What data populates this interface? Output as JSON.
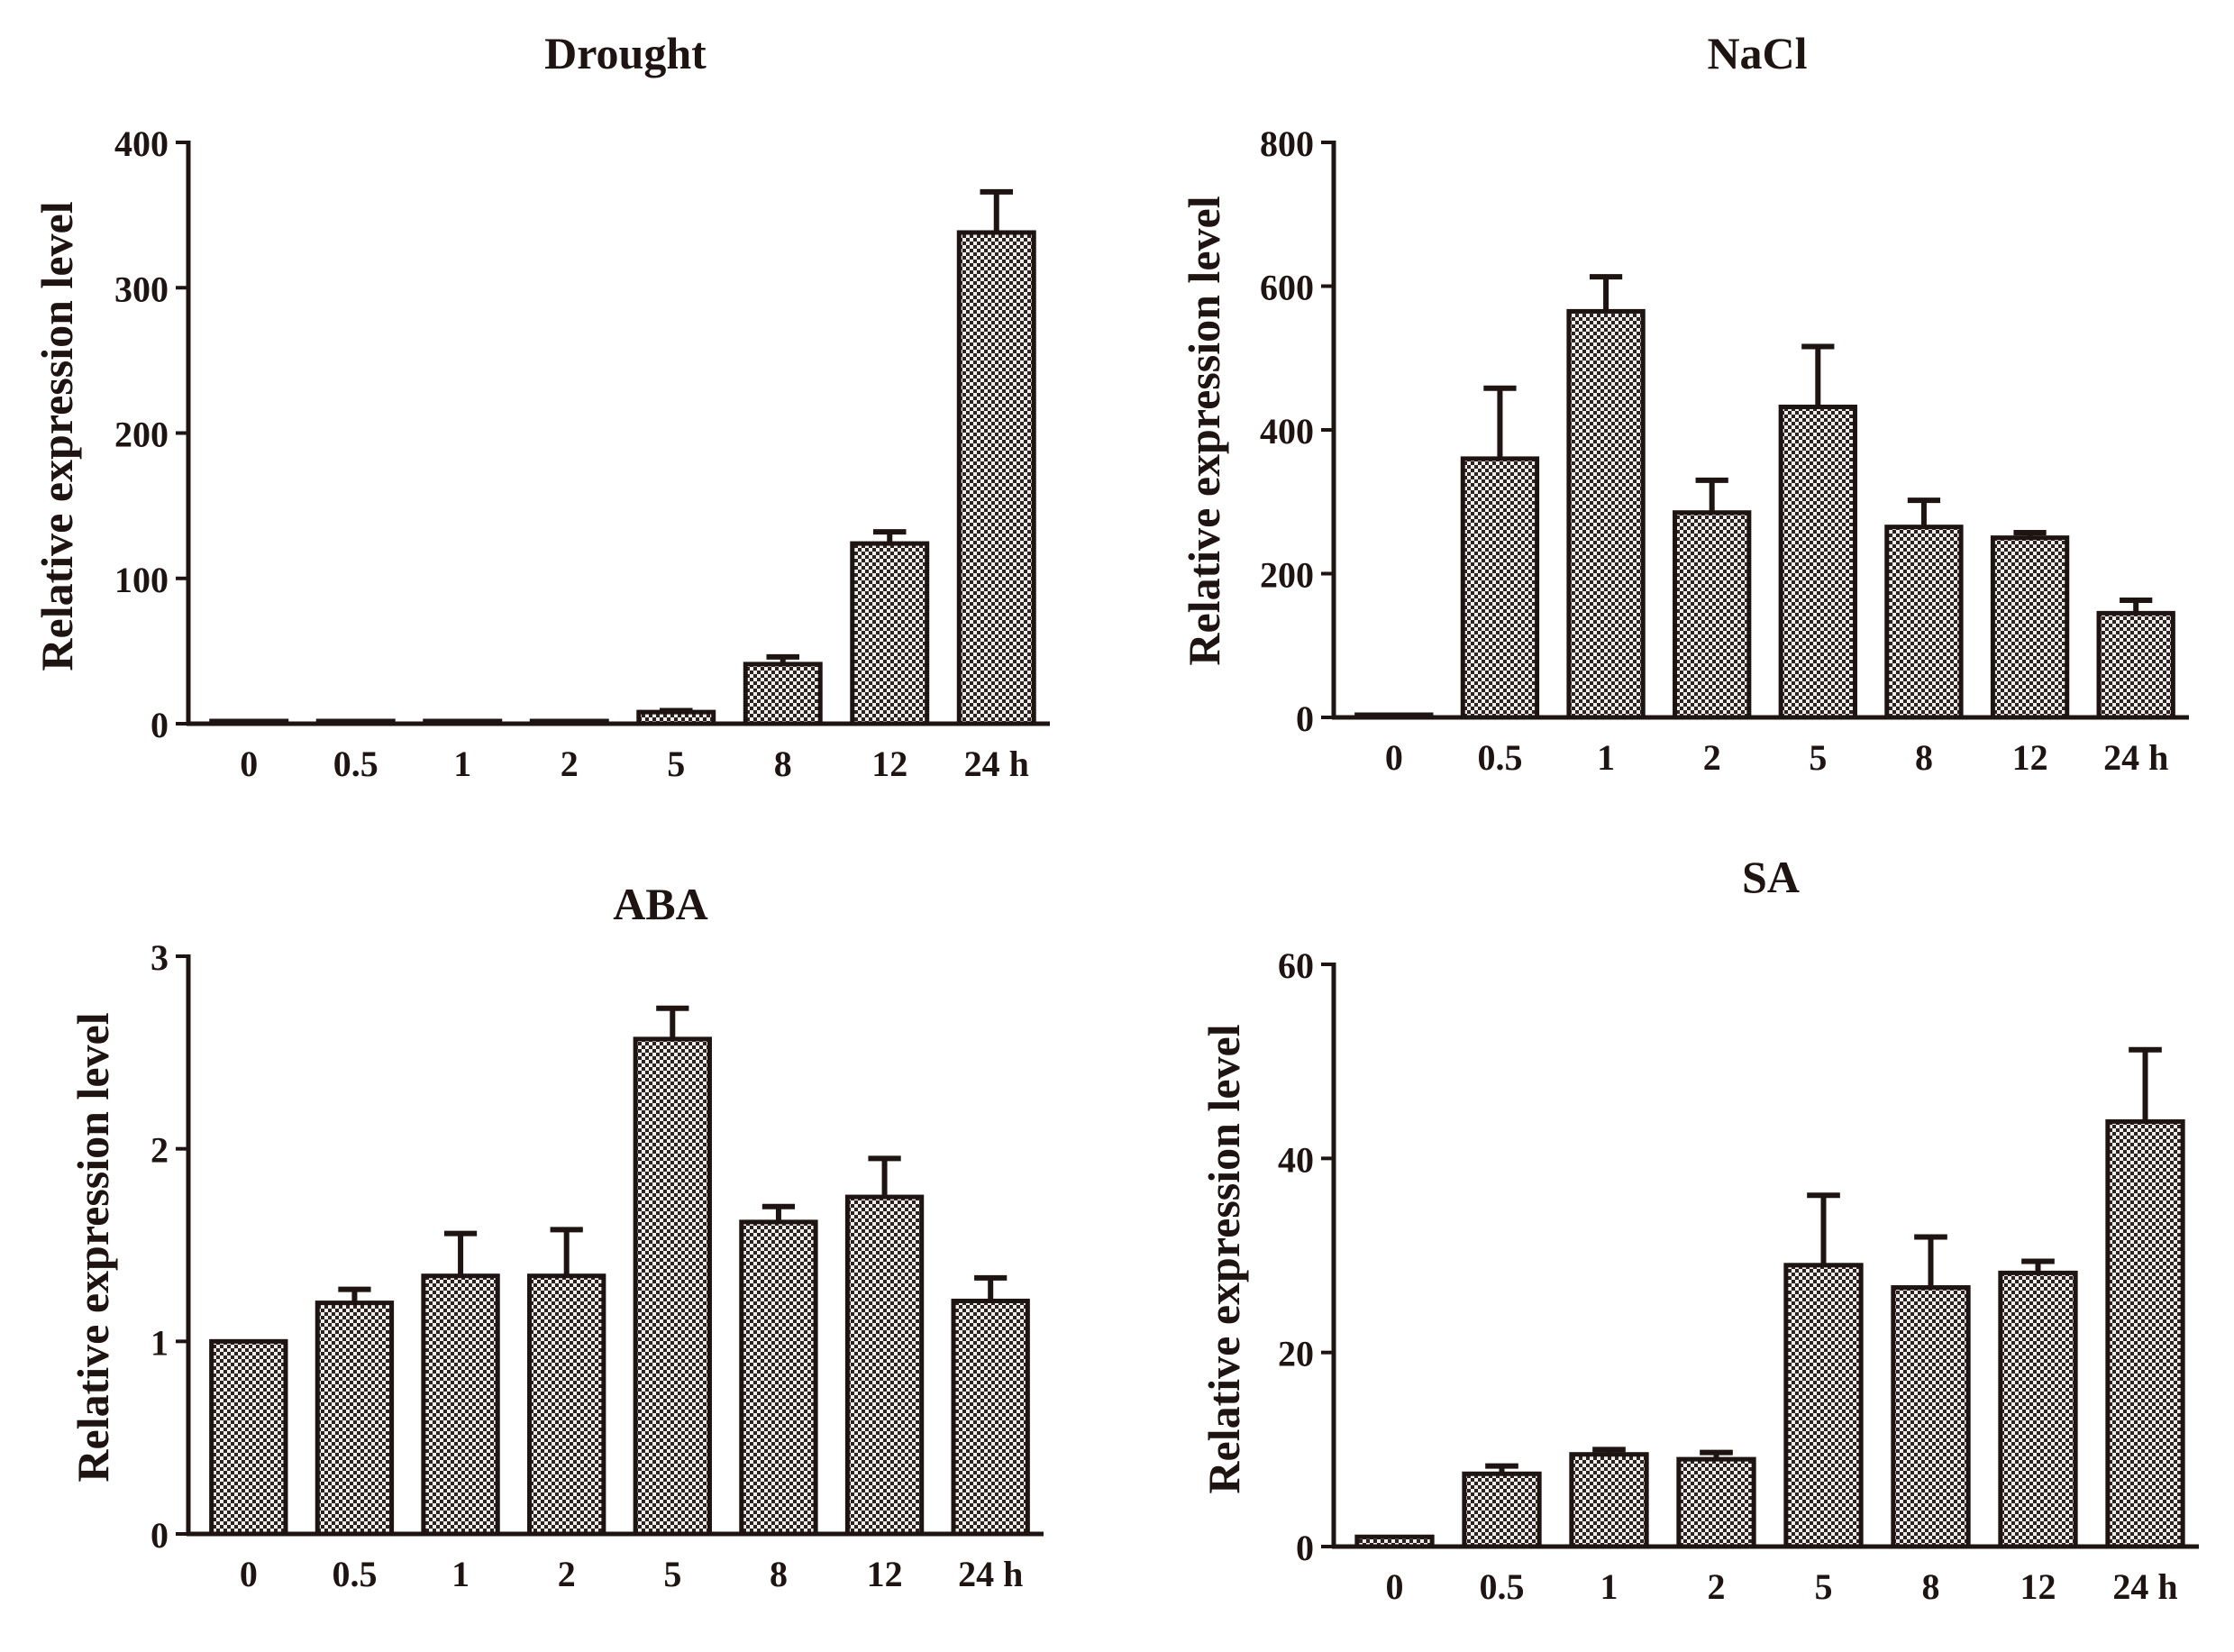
{
  "chart_data": [
    {
      "type": "bar",
      "title": "Drought",
      "ylabel": "Relative expression level",
      "xlabel": "",
      "categories": [
        "0",
        "0.5",
        "1",
        "2",
        "5",
        "8",
        "12",
        "24 h"
      ],
      "values": [
        1,
        1,
        0.5,
        0.5,
        8,
        41,
        124,
        338
      ],
      "errors": [
        0,
        0,
        0,
        0,
        1,
        5,
        8,
        28
      ],
      "ylim": [
        0,
        400
      ],
      "yticks": [
        "0",
        "100",
        "200",
        "300",
        "400"
      ],
      "ytick_values": [
        0,
        100,
        200,
        300,
        400
      ]
    },
    {
      "type": "bar",
      "title": "NaCl",
      "ylabel": "Relative expression level",
      "xlabel": "",
      "categories": [
        "0",
        "0.5",
        "1",
        "2",
        "5",
        "8",
        "12",
        "24 h"
      ],
      "values": [
        1,
        360,
        565,
        285,
        432,
        265,
        250,
        145
      ],
      "errors": [
        0,
        98,
        48,
        45,
        84,
        37,
        7,
        18
      ],
      "ylim": [
        0,
        800
      ],
      "yticks": [
        "0",
        "200",
        "400",
        "600",
        "800"
      ],
      "ytick_values": [
        0,
        200,
        400,
        600,
        800
      ]
    },
    {
      "type": "bar",
      "title": "ABA",
      "ylabel": "Relative expression level",
      "xlabel": "",
      "categories": [
        "0",
        "0.5",
        "1",
        "2",
        "5",
        "8",
        "12",
        "24 h"
      ],
      "values": [
        1.0,
        1.2,
        1.34,
        1.34,
        2.57,
        1.62,
        1.75,
        1.21
      ],
      "errors": [
        0,
        0.07,
        0.22,
        0.24,
        0.16,
        0.08,
        0.2,
        0.12
      ],
      "ylim": [
        0,
        3
      ],
      "yticks": [
        "0",
        "1",
        "2",
        "3"
      ],
      "ytick_values": [
        0,
        1,
        2,
        3
      ]
    },
    {
      "type": "bar",
      "title": "SA",
      "ylabel": "Relative expression level",
      "xlabel": "",
      "categories": [
        "0",
        "0.5",
        "1",
        "2",
        "5",
        "8",
        "12",
        "24 h"
      ],
      "values": [
        1,
        7.5,
        9.5,
        9,
        29,
        26.7,
        28.2,
        43.8
      ],
      "errors": [
        0,
        0.8,
        0.5,
        0.7,
        7.2,
        5.2,
        1.2,
        7.4
      ],
      "ylim": [
        0,
        60
      ],
      "yticks": [
        "0",
        "20",
        "40",
        "60"
      ],
      "ytick_values": [
        0,
        20,
        40,
        60
      ]
    }
  ]
}
